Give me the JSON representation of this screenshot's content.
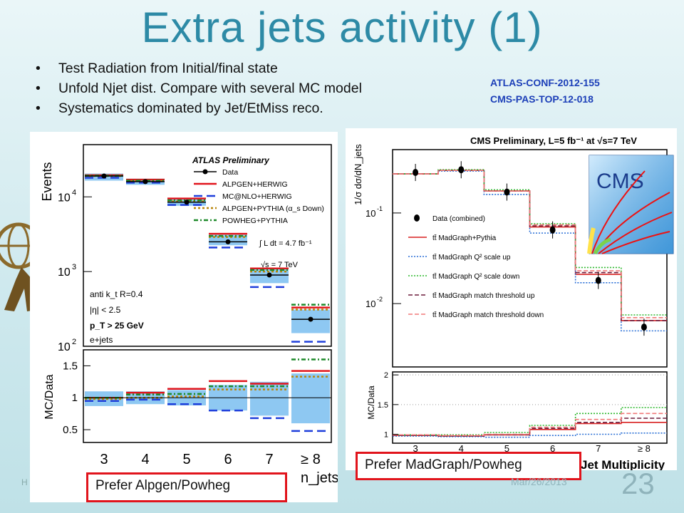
{
  "slide": {
    "title": "Extra jets activity (1)",
    "bullets": [
      "Test Radiation from Initial/final state",
      "Unfold Njet dist. Compare with several MC model",
      "Systematics dominated by Jet/EtMiss reco."
    ],
    "refs": [
      "ATLAS-CONF-2012-155",
      "CMS-PAS-TOP-12-018"
    ],
    "prefer_left": "Prefer Alpgen/Powheg",
    "prefer_right": "Prefer MadGraph/Powheg",
    "footer_left": "H",
    "date": "Mar/26/2013",
    "page_number": "23"
  },
  "colors": {
    "title": "#2d8aa6",
    "refs": "#1c3fb8",
    "highlight_box": "#e1141c",
    "band": "#8ec8f2",
    "alpgen": "#e1141c",
    "mcnlo": "#1f3fdb",
    "alpgen_down": "#b8860b",
    "powheg": "#1e8a2a"
  },
  "chart_data": [
    {
      "type": "bar",
      "ylabel": "Events",
      "xlabel": "n_jets",
      "log_y": true,
      "ylim": [
        100,
        50000
      ],
      "y_ticks": [
        "10^2",
        "10^3",
        "10^4"
      ],
      "categories": [
        "3",
        "4",
        "5",
        "6",
        "7",
        "≥ 8"
      ],
      "legend_title": "ATLAS Preliminary",
      "series": [
        {
          "name": "Data",
          "values": [
            19000,
            16000,
            8500,
            2500,
            900,
            230
          ]
        },
        {
          "name": "ALPGEN+HERWIG",
          "values": [
            19500,
            17000,
            9500,
            3200,
            1100,
            330
          ]
        },
        {
          "name": "MC@NLO+HERWIG",
          "values": [
            18000,
            15500,
            7800,
            2100,
            620,
            115
          ]
        },
        {
          "name": "ALPGEN+PYTHIA (α_s Down)",
          "values": [
            19000,
            16200,
            8700,
            2900,
            1000,
            310
          ]
        },
        {
          "name": "POWHEG+PYTHIA",
          "values": [
            19200,
            16500,
            9000,
            3000,
            1050,
            360
          ]
        }
      ],
      "band_low": [
        16500,
        14500,
        7600,
        2250,
        700,
        150
      ],
      "band_high": [
        20500,
        17500,
        9600,
        3100,
        1100,
        310
      ],
      "annotations": [
        "∫ L dt = 4.7 fb⁻¹",
        "√s = 7 TeV",
        "anti k_t R=0.4",
        "|η| < 2.5",
        "p_T > 25 GeV",
        "e+jets"
      ],
      "ratio": {
        "ylabel": "MC/Data",
        "ylim": [
          0.3,
          1.75
        ],
        "y_ticks": [
          "0.5",
          "1",
          "1.5"
        ],
        "band_low": [
          0.87,
          0.9,
          0.88,
          0.8,
          0.72,
          0.6
        ],
        "band_high": [
          1.1,
          1.1,
          1.12,
          1.2,
          1.25,
          1.38
        ],
        "series": [
          {
            "name": "ALPGEN+HERWIG",
            "values": [
              1.0,
              1.08,
              1.14,
              1.26,
              1.22,
              1.42
            ]
          },
          {
            "name": "MC@NLO+HERWIG",
            "values": [
              0.95,
              0.97,
              0.9,
              0.8,
              0.68,
              0.48
            ]
          },
          {
            "name": "ALPGEN+PYTHIA (α_s Down)",
            "values": [
              0.98,
              1.0,
              1.02,
              1.13,
              1.13,
              1.33
            ]
          },
          {
            "name": "POWHEG+PYTHIA",
            "values": [
              1.0,
              1.05,
              1.06,
              1.18,
              1.18,
              1.6
            ]
          }
        ]
      }
    },
    {
      "type": "bar",
      "title": "CMS Preliminary, L=5 fb⁻¹ at √s=7 TeV",
      "xlabel": "Jet Multiplicity",
      "ylabel": "1/σ dσ/dN_jets",
      "log_y": true,
      "ylim": [
        0.002,
        0.5
      ],
      "y_ticks": [
        "10^-1",
        "10^-2"
      ],
      "categories": [
        "3",
        "4",
        "5",
        "6",
        "7",
        "≥ 8"
      ],
      "series": [
        {
          "name": "Data (combined)",
          "values": [
            0.28,
            0.3,
            0.17,
            0.065,
            0.018,
            0.0055
          ]
        },
        {
          "name": "tt̄ MadGraph+Pythia",
          "values": [
            0.27,
            0.295,
            0.175,
            0.07,
            0.021,
            0.0065
          ]
        },
        {
          "name": "tt̄ MadGraph Q² scale up",
          "values": [
            0.27,
            0.29,
            0.16,
            0.06,
            0.017,
            0.005
          ]
        },
        {
          "name": "tt̄ MadGraph Q² scale down",
          "values": [
            0.27,
            0.3,
            0.18,
            0.076,
            0.025,
            0.0075
          ]
        },
        {
          "name": "tt̄ MadGraph match threshold up",
          "values": [
            0.27,
            0.295,
            0.175,
            0.072,
            0.022,
            0.0065
          ]
        },
        {
          "name": "tt̄ MadGraph match threshold down",
          "values": [
            0.27,
            0.295,
            0.175,
            0.074,
            0.023,
            0.007
          ]
        }
      ],
      "ratio": {
        "ylabel": "MC/Data",
        "ylim": [
          0.85,
          2.05
        ],
        "y_ticks": [
          "1",
          "1.5",
          "2"
        ],
        "series": [
          {
            "name": "tt̄ MadGraph+Pythia",
            "values": [
              0.98,
              0.97,
              0.99,
              1.08,
              1.18,
              1.2
            ]
          },
          {
            "name": "tt̄ MadGraph Q² scale up",
            "values": [
              0.97,
              0.96,
              0.95,
              0.98,
              1.0,
              1.02
            ]
          },
          {
            "name": "tt̄ MadGraph Q² scale down",
            "values": [
              0.99,
              0.99,
              1.03,
              1.15,
              1.35,
              1.45
            ]
          },
          {
            "name": "tt̄ MadGraph match threshold up",
            "values": [
              0.98,
              0.97,
              0.99,
              1.1,
              1.2,
              1.27
            ]
          },
          {
            "name": "tt̄ MadGraph match threshold down",
            "values": [
              0.99,
              0.98,
              1.0,
              1.12,
              1.25,
              1.35
            ]
          }
        ]
      }
    }
  ]
}
